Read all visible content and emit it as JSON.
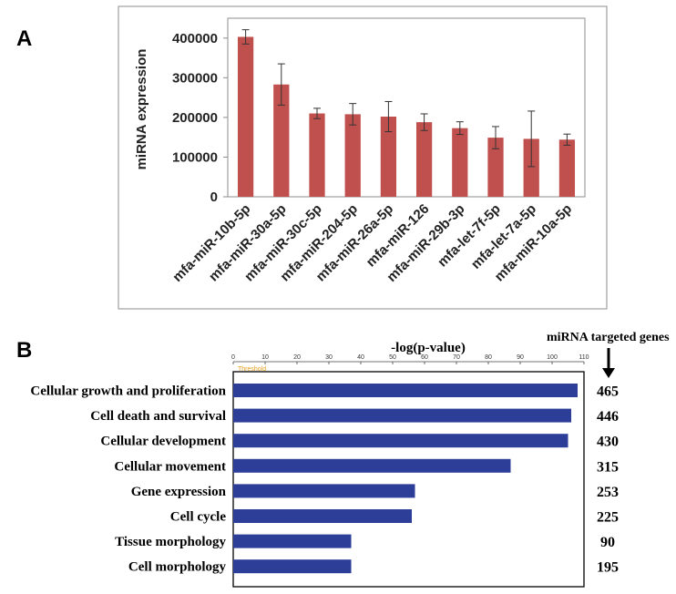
{
  "chart_data": [
    {
      "panel": "A",
      "type": "bar",
      "ylabel": "miRNA expression",
      "ylim": [
        0,
        450000
      ],
      "yticks": [
        "0",
        "100000",
        "200000",
        "300000",
        "400000"
      ],
      "yticks_values": [
        0,
        100000,
        200000,
        300000,
        400000
      ],
      "categories": [
        "mfa-miR-10b-5p",
        "mfa-miR-30a-5p",
        "mfa-miR-30c-5p",
        "mfa-miR-204-5p",
        "mfa-miR-26a-5p",
        "mfa-miR-126",
        "mfa-miR-29b-3p",
        "mfa-let-7f-5p",
        "mfa-let-7a-5p",
        "mfa-miR-10a-5p"
      ],
      "values": [
        403000,
        283000,
        210000,
        208000,
        202000,
        188000,
        173000,
        149000,
        146000,
        144000
      ],
      "errors": [
        18000,
        52000,
        13000,
        27000,
        38000,
        21000,
        16000,
        28000,
        70000,
        14000
      ],
      "bar_color": "#c0504d",
      "grid": false
    },
    {
      "panel": "B",
      "type": "bar",
      "orientation": "horizontal",
      "title": "-log(p-value)",
      "xlim": [
        0,
        110
      ],
      "xticks": [
        "0",
        "10",
        "20",
        "30",
        "40",
        "50",
        "60",
        "70",
        "80",
        "90",
        "100",
        "110"
      ],
      "xticks_values": [
        0,
        10,
        20,
        30,
        40,
        50,
        60,
        70,
        80,
        90,
        100,
        110
      ],
      "threshold_label": "Threshold",
      "right_header": "miRNA targeted genes",
      "categories": [
        "Cellular growth and proliferation",
        "Cell death and survival",
        "Cellular development",
        "Cellular movement",
        "Gene expression",
        "Cell cycle",
        "Tissue morphology",
        "Cell morphology"
      ],
      "values": [
        108,
        106,
        105,
        87,
        57,
        56,
        37,
        37
      ],
      "gene_counts": [
        "465",
        "446",
        "430",
        "315",
        "253",
        "225",
        "90",
        "195"
      ],
      "bar_color": "#2d3e99"
    }
  ],
  "panels": {
    "a_label": "A",
    "b_label": "B"
  },
  "icons": {
    "arrow": "down-arrow-icon"
  }
}
